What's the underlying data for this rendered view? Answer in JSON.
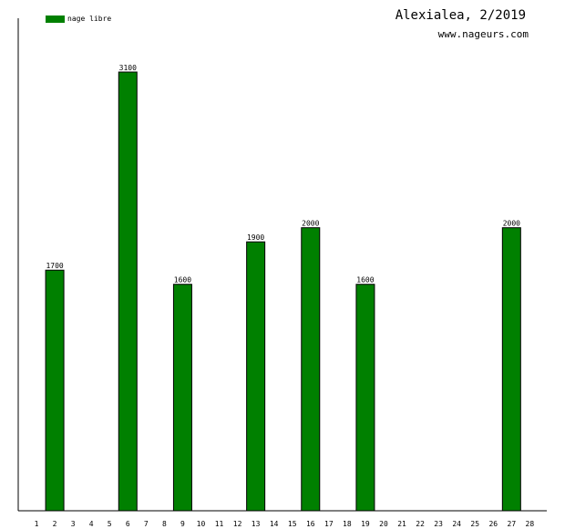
{
  "header": {
    "title": "Alexialea, 2/2019",
    "subtitle": "www.nageurs.com"
  },
  "colors": {
    "bar": "#008000",
    "axis": "#000000",
    "text": "#000000"
  },
  "chart_data": {
    "type": "bar",
    "title": "Alexialea, 2/2019",
    "subtitle": "www.nageurs.com",
    "xlabel": "",
    "ylabel": "",
    "categories": [
      "1",
      "2",
      "3",
      "4",
      "5",
      "6",
      "7",
      "8",
      "9",
      "10",
      "11",
      "12",
      "13",
      "14",
      "15",
      "16",
      "17",
      "18",
      "19",
      "20",
      "21",
      "22",
      "23",
      "24",
      "25",
      "26",
      "27",
      "28"
    ],
    "series": [
      {
        "name": "nage libre",
        "values": [
          null,
          1700,
          null,
          null,
          null,
          3100,
          null,
          null,
          1600,
          null,
          null,
          null,
          1900,
          null,
          null,
          2000,
          null,
          null,
          1600,
          null,
          null,
          null,
          null,
          null,
          null,
          null,
          2000,
          null
        ],
        "labels": [
          "",
          "1700",
          "",
          "",
          "",
          "3100",
          "",
          "",
          "1600",
          "",
          "",
          "",
          "1900",
          "",
          "",
          "2000",
          "",
          "",
          "1600",
          "",
          "",
          "",
          "",
          "",
          "",
          "",
          "2000",
          ""
        ]
      }
    ],
    "ylim": [
      0,
      3100
    ],
    "grid": false,
    "legend": "top-left"
  }
}
